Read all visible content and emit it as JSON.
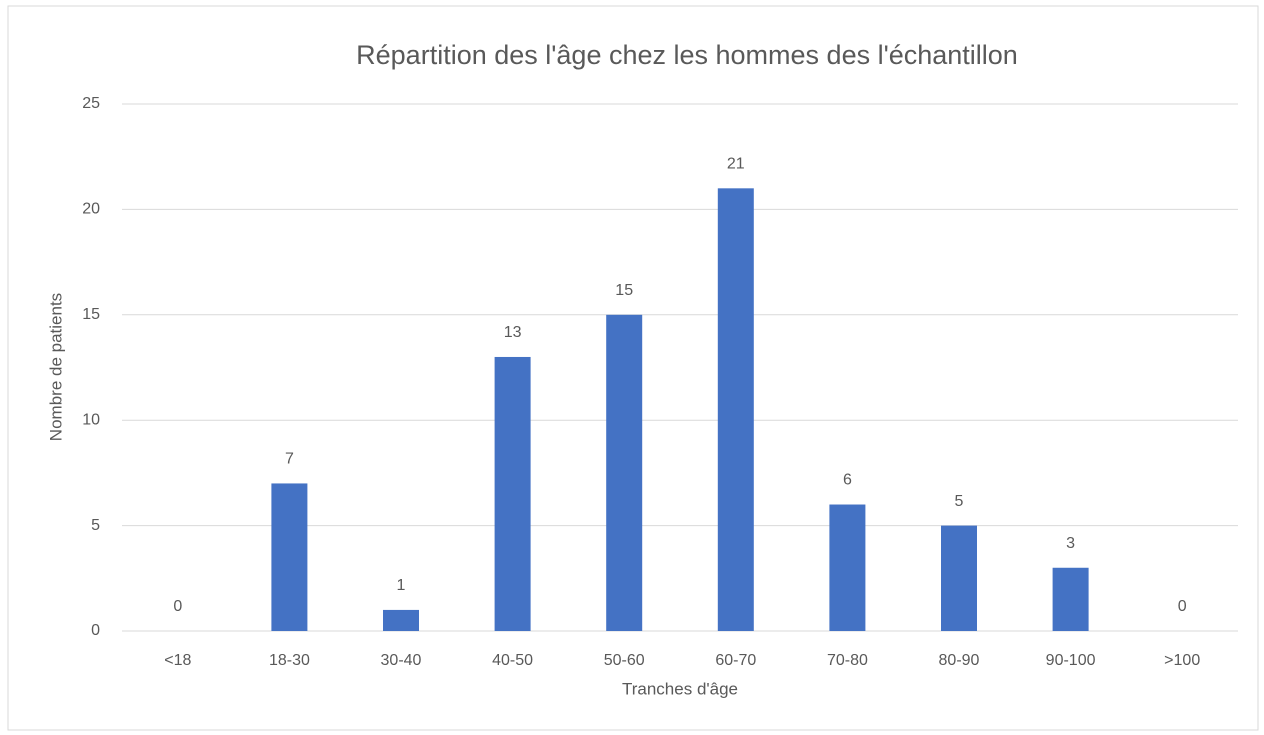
{
  "chart_data": {
    "type": "bar",
    "title": "Répartition des l'âge chez les hommes des l'échantillon",
    "x_label": "Tranches d'âge",
    "y_label": "Nombre de patients",
    "categories": [
      "<18",
      "18-30",
      "30-40",
      "40-50",
      "50-60",
      "60-70",
      "70-80",
      "80-90",
      "90-100",
      ">100"
    ],
    "values": [
      0,
      7,
      1,
      13,
      15,
      21,
      6,
      5,
      3,
      0
    ],
    "color": "#4472c4",
    "ylim": [
      0,
      25
    ],
    "yticks": [
      0,
      5,
      10,
      15,
      20,
      25
    ],
    "grid": true
  }
}
